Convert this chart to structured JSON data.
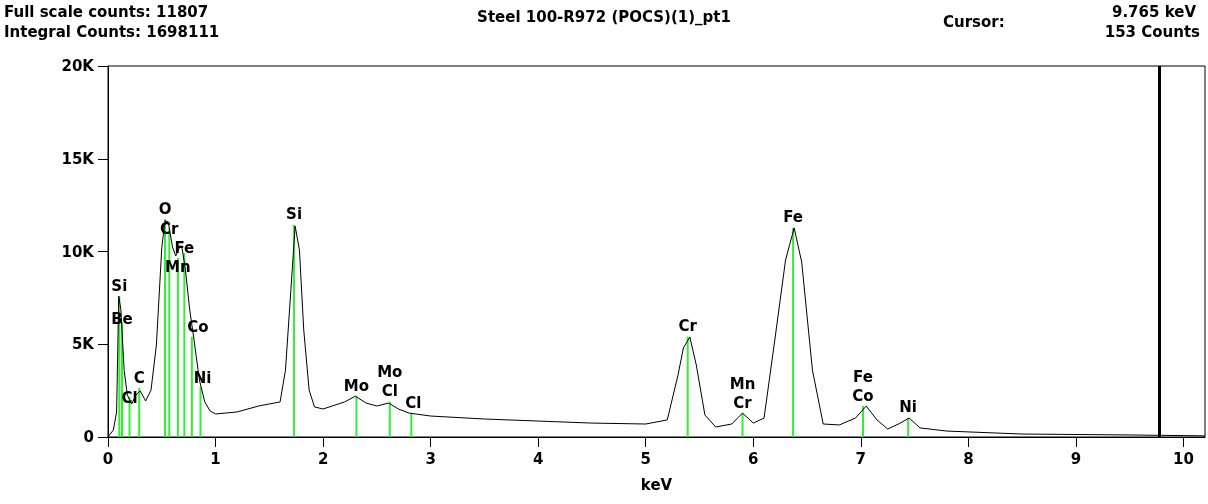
{
  "chart_data": {
    "type": "line",
    "title": "Steel 100-R972 (POCS)(1)_pt1",
    "xlabel": "keV",
    "x": [
      0,
      0.05,
      0.08,
      0.1,
      0.12,
      0.15,
      0.18,
      0.22,
      0.26,
      0.3,
      0.35,
      0.4,
      0.45,
      0.5,
      0.53,
      0.56,
      0.6,
      0.63,
      0.67,
      0.69,
      0.72,
      0.76,
      0.8,
      0.85,
      0.9,
      0.95,
      1.0,
      1.2,
      1.4,
      1.5,
      1.6,
      1.65,
      1.7,
      1.74,
      1.78,
      1.82,
      1.87,
      1.92,
      2.0,
      2.2,
      2.3,
      2.4,
      2.5,
      2.61,
      2.7,
      2.8,
      3.0,
      3.5,
      4.0,
      4.5,
      5.0,
      5.2,
      5.3,
      5.35,
      5.41,
      5.47,
      5.55,
      5.65,
      5.8,
      5.9,
      6.0,
      6.1,
      6.2,
      6.3,
      6.38,
      6.45,
      6.55,
      6.65,
      6.8,
      6.95,
      7.05,
      7.15,
      7.25,
      7.35,
      7.45,
      7.55,
      7.8,
      8.5,
      9.5,
      10.2
    ],
    "series": [
      {
        "color": "#000000",
        "values": [
          0,
          380,
          1350,
          7600,
          6850,
          3600,
          2260,
          1780,
          2260,
          2480,
          1940,
          2530,
          4960,
          10200,
          11650,
          11600,
          10240,
          9760,
          10300,
          10140,
          9000,
          6850,
          5230,
          3070,
          1890,
          1400,
          1240,
          1350,
          1670,
          1780,
          1890,
          3600,
          7900,
          11370,
          10080,
          5770,
          2530,
          1620,
          1510,
          1890,
          2200,
          1830,
          1670,
          1830,
          1510,
          1290,
          1130,
          970,
          860,
          750,
          700,
          920,
          3340,
          4800,
          5390,
          3880,
          1190,
          540,
          700,
          1290,
          750,
          1020,
          5230,
          9540,
          11270,
          9430,
          3600,
          700,
          650,
          1020,
          1670,
          920,
          430,
          700,
          1020,
          490,
          320,
          160,
          110,
          60
        ]
      },
      {
        "type": "bar",
        "color": "#33ee33",
        "x": [
          0.105,
          0.13,
          0.2,
          0.29,
          0.53,
          0.57,
          0.65,
          0.71,
          0.78,
          0.86,
          1.73,
          2.31,
          2.62,
          2.82,
          5.39,
          5.9,
          6.37,
          7.02,
          7.44
        ],
        "values": [
          7560,
          6200,
          2170,
          2640,
          11750,
          11270,
          9650,
          9920,
          5390,
          2700,
          11430,
          2210,
          1900,
          1290,
          5410,
          1290,
          11280,
          1670,
          1040
        ],
        "value_labels": [
          "Si",
          "Be",
          "Cl",
          "C",
          "O",
          "Cr",
          "Mn",
          "Fe",
          "Co",
          "Ni",
          "Si",
          "Mo",
          "Mo\nCl",
          "Cl",
          "Cr",
          "Mn\nCr",
          "Fe",
          "Fe\nCo",
          "Ni"
        ]
      }
    ],
    "xlim": [
      0,
      10.2
    ],
    "xticks": [
      0,
      1,
      2,
      3,
      4,
      5,
      6,
      7,
      8,
      9,
      10
    ],
    "ylim": [
      0,
      20000
    ],
    "yticks": [
      0,
      {
        "value": 5000,
        "label": "5K"
      },
      {
        "value": 10000,
        "label": "10K"
      },
      {
        "value": 15000,
        "label": "15K"
      },
      {
        "value": 20000,
        "label": "20K"
      }
    ],
    "ref_lines": [
      {
        "axis": "x",
        "value": 9.765,
        "color": "#000000"
      }
    ],
    "grid": false,
    "marker": "none",
    "line_style": "solid",
    "annotations": [
      "Full scale counts: 11807",
      "Integral Counts: 1698111",
      "Cursor:",
      "9.765 keV",
      "153 Counts"
    ]
  }
}
